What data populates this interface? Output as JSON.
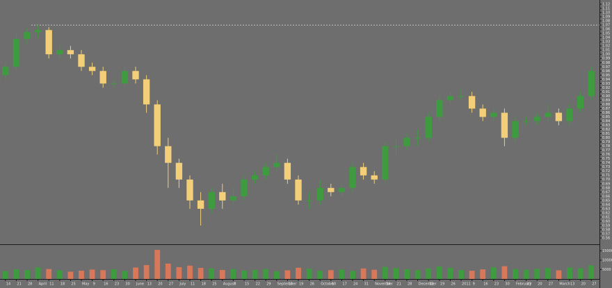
{
  "chart_data": {
    "type": "candlestick",
    "categories": [
      "14",
      "21",
      "28",
      "April",
      "11",
      "18",
      "25",
      "May",
      "9",
      "16",
      "23",
      "30",
      "June",
      "13",
      "20",
      "27",
      "July",
      "11",
      "18",
      "25",
      "August",
      "8",
      "15",
      "22",
      "29",
      "September",
      "12",
      "19",
      "26",
      "October",
      "10",
      "17",
      "24",
      "31",
      "November",
      "14",
      "21",
      "28",
      "December",
      "12",
      "19",
      "26",
      "2011",
      "9",
      "16",
      "23",
      "30",
      "February",
      "13",
      "20",
      "27",
      "March",
      "13",
      "20",
      "27"
    ],
    "open": [
      0.95,
      0.97,
      1.037,
      1.053,
      1.058,
      1.0,
      1.01,
      1.0,
      0.97,
      0.96,
      0.93,
      0.93,
      0.96,
      0.94,
      0.88,
      0.78,
      0.74,
      0.7,
      0.65,
      0.63,
      0.67,
      0.65,
      0.66,
      0.7,
      0.71,
      0.73,
      0.74,
      0.7,
      0.65,
      0.65,
      0.68,
      0.67,
      0.68,
      0.73,
      0.71,
      0.7,
      0.78,
      0.78,
      0.8,
      0.8,
      0.85,
      0.89,
      0.9,
      0.9,
      0.87,
      0.85,
      0.86,
      0.8,
      0.84,
      0.84,
      0.85,
      0.86,
      0.84,
      0.87,
      0.9
    ],
    "high": [
      0.98,
      1.05,
      1.065,
      1.07,
      1.065,
      1.02,
      1.02,
      1.01,
      0.98,
      0.97,
      0.94,
      0.97,
      0.97,
      0.95,
      0.89,
      0.8,
      0.75,
      0.71,
      0.67,
      0.68,
      0.69,
      0.68,
      0.71,
      0.72,
      0.74,
      0.76,
      0.75,
      0.71,
      0.67,
      0.7,
      0.69,
      0.69,
      0.74,
      0.74,
      0.72,
      0.79,
      0.8,
      0.81,
      0.82,
      0.86,
      0.9,
      0.91,
      0.92,
      0.91,
      0.88,
      0.87,
      0.87,
      0.85,
      0.85,
      0.86,
      0.88,
      0.87,
      0.88,
      0.91,
      0.97
    ],
    "low": [
      0.94,
      0.96,
      1.025,
      1.04,
      0.99,
      0.99,
      0.99,
      0.96,
      0.95,
      0.92,
      0.92,
      0.92,
      0.93,
      0.86,
      0.76,
      0.68,
      0.68,
      0.63,
      0.59,
      0.62,
      0.63,
      0.64,
      0.65,
      0.69,
      0.7,
      0.72,
      0.69,
      0.64,
      0.63,
      0.64,
      0.66,
      0.66,
      0.67,
      0.7,
      0.69,
      0.69,
      0.76,
      0.77,
      0.78,
      0.79,
      0.84,
      0.88,
      0.89,
      0.86,
      0.84,
      0.84,
      0.78,
      0.79,
      0.83,
      0.83,
      0.84,
      0.83,
      0.83,
      0.86,
      0.89
    ],
    "close": [
      0.97,
      1.037,
      1.053,
      1.058,
      1.0,
      1.01,
      1.0,
      0.97,
      0.96,
      0.93,
      0.93,
      0.96,
      0.94,
      0.88,
      0.78,
      0.74,
      0.7,
      0.65,
      0.63,
      0.67,
      0.65,
      0.66,
      0.7,
      0.71,
      0.73,
      0.74,
      0.7,
      0.65,
      0.65,
      0.68,
      0.67,
      0.68,
      0.73,
      0.71,
      0.7,
      0.78,
      0.78,
      0.8,
      0.8,
      0.85,
      0.89,
      0.9,
      0.9,
      0.87,
      0.85,
      0.86,
      0.8,
      0.84,
      0.84,
      0.85,
      0.86,
      0.84,
      0.87,
      0.9,
      0.96
    ],
    "volume": [
      4200,
      5100,
      4800,
      6200,
      5300,
      4600,
      3900,
      4400,
      5000,
      4700,
      5200,
      4300,
      6100,
      7400,
      15500,
      8200,
      6300,
      7100,
      5900,
      5600,
      4800,
      5200,
      4500,
      4900,
      5300,
      4100,
      4600,
      6000,
      5400,
      4400,
      4700,
      5000,
      4300,
      5600,
      4900,
      6400,
      5800,
      5200,
      4700,
      5500,
      6600,
      5900,
      4800,
      4400,
      5100,
      6200,
      6800,
      5300,
      4900,
      5400,
      5800,
      4600,
      6100,
      5700,
      7200
    ],
    "reference_line": 1.07,
    "up_color": "#3f9b3f",
    "down_color": "#f2cf78",
    "grid": false,
    "ylim": [
      0.545,
      1.13
    ],
    "yticks": [
      {
        "value": 0.56,
        "label": "0.56"
      },
      {
        "value": 0.57,
        "label": "0.57"
      },
      {
        "value": 0.58,
        "label": "0.58"
      },
      {
        "value": 0.59,
        "label": "0.59"
      },
      {
        "value": 0.6,
        "label": "0.60"
      },
      {
        "value": 0.61,
        "label": "0.61"
      },
      {
        "value": 0.62,
        "label": "0.62"
      },
      {
        "value": 0.63,
        "label": "0.63"
      },
      {
        "value": 0.64,
        "label": "0.64"
      },
      {
        "value": 0.65,
        "label": "0.65"
      },
      {
        "value": 0.66,
        "label": "0.66"
      },
      {
        "value": 0.67,
        "label": "0.67"
      },
      {
        "value": 0.68,
        "label": "0.68"
      },
      {
        "value": 0.69,
        "label": "0.69"
      },
      {
        "value": 0.7,
        "label": "0.70"
      },
      {
        "value": 0.71,
        "label": "0.71"
      },
      {
        "value": 0.72,
        "label": "0.72"
      },
      {
        "value": 0.73,
        "label": "0.73"
      },
      {
        "value": 0.74,
        "label": "0.74"
      },
      {
        "value": 0.75,
        "label": "0.75"
      },
      {
        "value": 0.76,
        "label": "0.76"
      },
      {
        "value": 0.77,
        "label": "0.77"
      },
      {
        "value": 0.78,
        "label": "0.78"
      },
      {
        "value": 0.79,
        "label": "0.79"
      },
      {
        "value": 0.8,
        "label": "0.80"
      },
      {
        "value": 0.81,
        "label": "0.81"
      },
      {
        "value": 0.82,
        "label": "0.82"
      },
      {
        "value": 0.83,
        "label": "0.83"
      },
      {
        "value": 0.84,
        "label": "0.84"
      },
      {
        "value": 0.85,
        "label": "0.85"
      },
      {
        "value": 0.86,
        "label": "0.86"
      },
      {
        "value": 0.87,
        "label": "0.87"
      },
      {
        "value": 0.88,
        "label": "0.88"
      },
      {
        "value": 0.89,
        "label": "0.89"
      },
      {
        "value": 0.9,
        "label": "0.90"
      },
      {
        "value": 0.91,
        "label": "0.91"
      },
      {
        "value": 0.92,
        "label": "0.92"
      },
      {
        "value": 0.93,
        "label": "0.93"
      },
      {
        "value": 0.94,
        "label": "0.94"
      },
      {
        "value": 0.95,
        "label": "0.95"
      },
      {
        "value": 0.96,
        "label": "0.96"
      },
      {
        "value": 0.97,
        "label": "0.97"
      },
      {
        "value": 0.98,
        "label": "0.98"
      },
      {
        "value": 0.99,
        "label": "0.99"
      },
      {
        "value": 1,
        "label": "1.00"
      },
      {
        "value": 1.01,
        "label": "1.01"
      },
      {
        "value": 1.02,
        "label": "1.02"
      },
      {
        "value": 1.03,
        "label": "1.03"
      },
      {
        "value": 1.04,
        "label": "1.04"
      },
      {
        "value": 1.05,
        "label": "1.05"
      },
      {
        "value": 1.06,
        "label": "1.06"
      },
      {
        "value": 1.07,
        "label": "1.07"
      },
      {
        "value": 1.08,
        "label": "1.08"
      },
      {
        "value": 1.09,
        "label": "1.09"
      },
      {
        "value": 1.1,
        "label": "1.10"
      },
      {
        "value": 1.11,
        "label": "1.11"
      },
      {
        "value": 1.12,
        "label": "1.12"
      }
    ],
    "volume_ylim": [
      0,
      17000
    ],
    "volume_yticks": [
      5000,
      10000,
      15000
    ]
  }
}
